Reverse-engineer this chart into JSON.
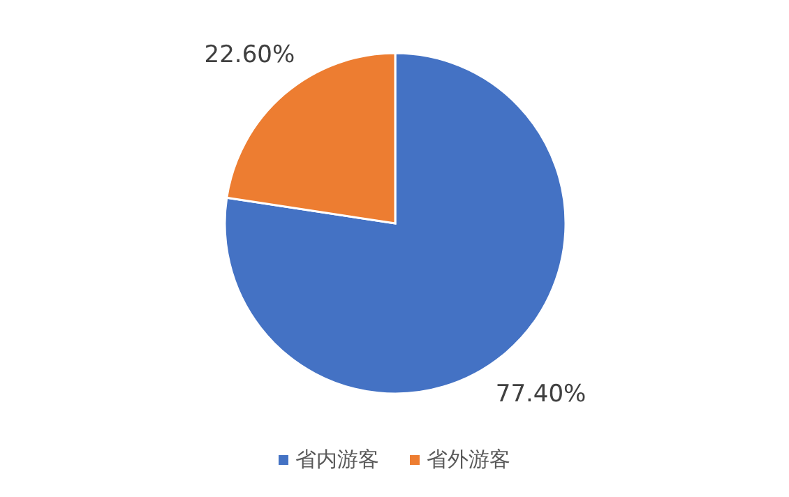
{
  "chart_data": {
    "type": "pie",
    "categories": [
      "省内游客",
      "省外游客"
    ],
    "values": [
      77.4,
      22.6
    ],
    "colors": [
      "#4472c4",
      "#ed7d31"
    ],
    "value_labels": [
      "77.40%",
      "22.60%"
    ],
    "legend": "bottom"
  }
}
